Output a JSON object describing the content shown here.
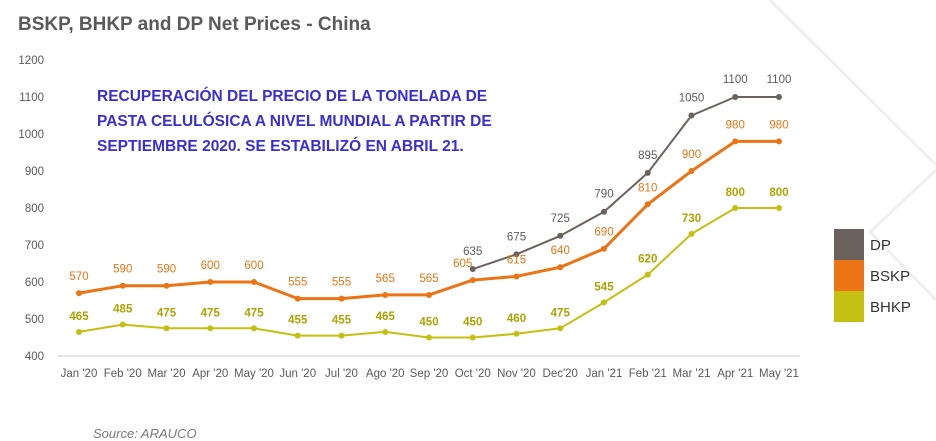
{
  "header": {
    "title": "BSKP, BHKP and DP Net Prices - China"
  },
  "annotation": {
    "lines": [
      "RECUPERACIÓN DEL PRECIO DE LA TONELADA DE",
      "PASTA CELULÓSICA A NIVEL MUNDIAL A PARTIR DE",
      "SEPTIEMBRE 2020. SE ESTABILIZÓ EN ABRIL 21."
    ]
  },
  "footer": {
    "source": "Source: ARAUCO"
  },
  "colors": {
    "DP": "#6b625d",
    "BSKP": "#ec7414",
    "BHKP": "#c4c011",
    "axis": "#c8c8c8",
    "deco": "#efefef"
  },
  "chart_data": {
    "type": "line",
    "title": "BSKP, BHKP and DP Net Prices - China",
    "xlabel": "",
    "ylabel": "",
    "categories": [
      "Jan '20",
      "Feb '20",
      "Mar '20",
      "Apr '20",
      "May '20",
      "Jun '20",
      "Jul '20",
      "Ago '20",
      "Sep '20",
      "Oct '20",
      "Nov '20",
      "Dec'20",
      "Jan '21",
      "Feb '21",
      "Mar '21",
      "Apr '21",
      "May '21"
    ],
    "ylim": [
      400,
      1200
    ],
    "yticks": [
      400,
      500,
      600,
      700,
      800,
      900,
      1000,
      1100,
      1200
    ],
    "grid": false,
    "legend_position": "right",
    "series": [
      {
        "name": "DP",
        "values": [
          null,
          null,
          null,
          null,
          null,
          null,
          null,
          null,
          null,
          635,
          675,
          725,
          790,
          895,
          1050,
          1100,
          1100
        ]
      },
      {
        "name": "BSKP",
        "values": [
          570,
          590,
          590,
          600,
          600,
          555,
          555,
          565,
          565,
          605,
          615,
          640,
          690,
          810,
          900,
          980,
          980
        ]
      },
      {
        "name": "BHKP",
        "values": [
          465,
          485,
          475,
          475,
          475,
          455,
          455,
          465,
          450,
          450,
          460,
          475,
          545,
          620,
          730,
          800,
          800
        ]
      }
    ]
  }
}
